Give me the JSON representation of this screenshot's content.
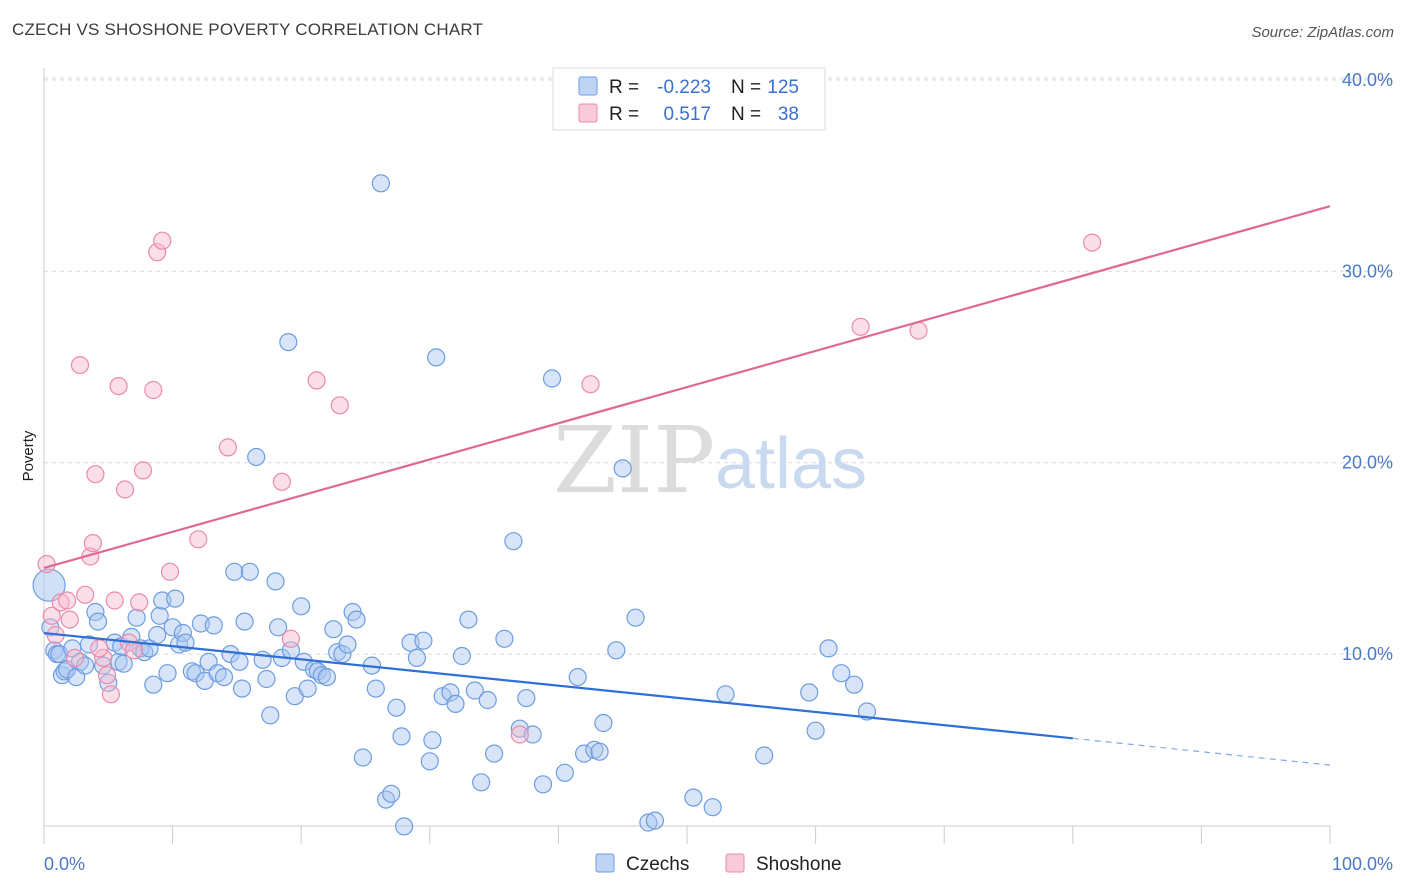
{
  "title": "CZECH VS SHOSHONE POVERTY CORRELATION CHART",
  "source": "Source: ZipAtlas.com",
  "watermark": {
    "part1": "ZIP",
    "part2": "atlas"
  },
  "legend_top": [
    {
      "r_label": "R =",
      "r_value": "-0.223",
      "n_label": "N =",
      "n_value": "125",
      "color": "#a9c6f0"
    },
    {
      "r_label": "R =",
      "r_value": "0.517",
      "n_label": "N =",
      "n_value": "38",
      "color": "#f7b8cc"
    }
  ],
  "legend_bottom": [
    {
      "label": "Czechs",
      "color": "#a9c6f0"
    },
    {
      "label": "Shoshone",
      "color": "#f7b8cc"
    }
  ],
  "chart_data": {
    "type": "scatter",
    "title": "CZECH VS SHOSHONE POVERTY CORRELATION CHART",
    "xlabel": "",
    "ylabel": "Poverty",
    "xlim": [
      0,
      100
    ],
    "ylim": [
      0,
      40
    ],
    "x_tick_labels": [
      "0.0%",
      "100.0%"
    ],
    "y_ticks": [
      10,
      20,
      30,
      40
    ],
    "y_tick_labels": [
      "10.0%",
      "20.0%",
      "30.0%",
      "40.0%"
    ],
    "grid": true,
    "legend_position": "top-center",
    "series": [
      {
        "name": "Czechs",
        "color": "#a9c6f0",
        "stroke": "#6d9de0",
        "trend": {
          "x": [
            0,
            80
          ],
          "y": [
            11.1,
            5.6
          ],
          "dashed_extension": {
            "x": [
              80,
              100
            ],
            "y": [
              5.6,
              4.2
            ]
          },
          "color": "#2f6fd6"
        },
        "points": [
          [
            0.4,
            13.6
          ],
          [
            0.5,
            11.4
          ],
          [
            0.8,
            10.2
          ],
          [
            1.0,
            10.0
          ],
          [
            1.2,
            10.0
          ],
          [
            1.4,
            8.9
          ],
          [
            1.6,
            9.1
          ],
          [
            1.8,
            9.2
          ],
          [
            2.2,
            10.3
          ],
          [
            2.5,
            8.8
          ],
          [
            2.8,
            9.6
          ],
          [
            3.2,
            9.4
          ],
          [
            3.5,
            10.5
          ],
          [
            4.0,
            12.2
          ],
          [
            4.2,
            11.7
          ],
          [
            4.6,
            9.4
          ],
          [
            5.0,
            8.5
          ],
          [
            5.5,
            10.6
          ],
          [
            5.8,
            9.6
          ],
          [
            6.0,
            10.4
          ],
          [
            6.2,
            9.5
          ],
          [
            6.8,
            10.9
          ],
          [
            7.2,
            11.9
          ],
          [
            7.5,
            10.3
          ],
          [
            7.8,
            10.1
          ],
          [
            8.2,
            10.3
          ],
          [
            8.5,
            8.4
          ],
          [
            8.8,
            11.0
          ],
          [
            9.0,
            12.0
          ],
          [
            9.2,
            12.8
          ],
          [
            9.6,
            9.0
          ],
          [
            10.0,
            11.4
          ],
          [
            10.2,
            12.9
          ],
          [
            10.5,
            10.5
          ],
          [
            10.8,
            11.1
          ],
          [
            11.0,
            10.6
          ],
          [
            11.5,
            9.1
          ],
          [
            11.8,
            9.0
          ],
          [
            12.2,
            11.6
          ],
          [
            12.5,
            8.6
          ],
          [
            12.8,
            9.6
          ],
          [
            13.2,
            11.5
          ],
          [
            13.5,
            9.0
          ],
          [
            14.0,
            8.8
          ],
          [
            14.5,
            10.0
          ],
          [
            14.8,
            14.3
          ],
          [
            15.2,
            9.6
          ],
          [
            15.4,
            8.2
          ],
          [
            15.6,
            11.7
          ],
          [
            16.0,
            14.3
          ],
          [
            16.5,
            20.3
          ],
          [
            17.0,
            9.7
          ],
          [
            17.3,
            8.7
          ],
          [
            17.6,
            6.8
          ],
          [
            18.0,
            13.8
          ],
          [
            18.2,
            11.4
          ],
          [
            18.5,
            9.8
          ],
          [
            19.0,
            26.3
          ],
          [
            19.2,
            10.2
          ],
          [
            19.5,
            7.8
          ],
          [
            20.0,
            12.5
          ],
          [
            20.2,
            9.6
          ],
          [
            20.5,
            8.2
          ],
          [
            21.0,
            9.2
          ],
          [
            21.3,
            9.1
          ],
          [
            21.6,
            8.9
          ],
          [
            22.0,
            8.8
          ],
          [
            22.5,
            11.3
          ],
          [
            22.8,
            10.1
          ],
          [
            23.2,
            10.0
          ],
          [
            23.6,
            10.5
          ],
          [
            24.0,
            12.2
          ],
          [
            24.3,
            11.8
          ],
          [
            24.8,
            4.6
          ],
          [
            25.5,
            9.4
          ],
          [
            25.8,
            8.2
          ],
          [
            26.2,
            34.6
          ],
          [
            26.6,
            2.4
          ],
          [
            27.0,
            2.7
          ],
          [
            27.4,
            7.2
          ],
          [
            27.8,
            5.7
          ],
          [
            28.0,
            1.0
          ],
          [
            28.5,
            10.6
          ],
          [
            29.0,
            9.8
          ],
          [
            29.5,
            10.7
          ],
          [
            30.0,
            4.4
          ],
          [
            30.2,
            5.5
          ],
          [
            30.5,
            25.5
          ],
          [
            31.0,
            7.8
          ],
          [
            31.6,
            8.0
          ],
          [
            32.0,
            7.4
          ],
          [
            32.5,
            9.9
          ],
          [
            33.0,
            11.8
          ],
          [
            33.5,
            8.1
          ],
          [
            34.0,
            3.3
          ],
          [
            34.5,
            7.6
          ],
          [
            35.0,
            4.8
          ],
          [
            35.8,
            10.8
          ],
          [
            36.5,
            15.9
          ],
          [
            37.0,
            6.1
          ],
          [
            37.5,
            7.7
          ],
          [
            38.0,
            5.8
          ],
          [
            38.8,
            3.2
          ],
          [
            39.5,
            24.4
          ],
          [
            40.5,
            3.8
          ],
          [
            41.5,
            8.8
          ],
          [
            42.0,
            4.8
          ],
          [
            42.8,
            5.0
          ],
          [
            43.2,
            4.9
          ],
          [
            43.5,
            6.4
          ],
          [
            44.5,
            10.2
          ],
          [
            45.0,
            19.7
          ],
          [
            46.0,
            11.9
          ],
          [
            47.0,
            1.2
          ],
          [
            47.5,
            1.3
          ],
          [
            50.5,
            2.5
          ],
          [
            52.0,
            2.0
          ],
          [
            53.0,
            7.9
          ],
          [
            59.5,
            8.0
          ],
          [
            56.0,
            4.7
          ],
          [
            60.0,
            6.0
          ],
          [
            61.0,
            10.3
          ],
          [
            62.0,
            9.0
          ],
          [
            63.0,
            8.4
          ],
          [
            64.0,
            7.0
          ]
        ]
      },
      {
        "name": "Shoshone",
        "color": "#f7b8cc",
        "stroke": "#ec8aa9",
        "trend": {
          "x": [
            0,
            100
          ],
          "y": [
            14.5,
            33.4
          ],
          "color": "#e0698f"
        },
        "points": [
          [
            0.2,
            14.7
          ],
          [
            0.6,
            12.0
          ],
          [
            0.9,
            11.0
          ],
          [
            1.3,
            12.7
          ],
          [
            1.8,
            12.8
          ],
          [
            2.0,
            11.8
          ],
          [
            2.4,
            9.8
          ],
          [
            2.8,
            25.1
          ],
          [
            3.2,
            13.1
          ],
          [
            3.6,
            15.1
          ],
          [
            3.8,
            15.8
          ],
          [
            4.0,
            19.4
          ],
          [
            4.6,
            9.8
          ],
          [
            4.9,
            8.9
          ],
          [
            5.2,
            7.9
          ],
          [
            5.5,
            12.8
          ],
          [
            5.8,
            24.0
          ],
          [
            6.3,
            18.6
          ],
          [
            6.6,
            10.6
          ],
          [
            7.0,
            10.2
          ],
          [
            7.4,
            12.7
          ],
          [
            7.7,
            19.6
          ],
          [
            8.5,
            23.8
          ],
          [
            8.8,
            31.0
          ],
          [
            9.2,
            31.6
          ],
          [
            9.8,
            14.3
          ],
          [
            12.0,
            16.0
          ],
          [
            14.3,
            20.8
          ],
          [
            18.5,
            19.0
          ],
          [
            19.2,
            10.8
          ],
          [
            21.2,
            24.3
          ],
          [
            23.0,
            23.0
          ],
          [
            37.0,
            5.8
          ],
          [
            42.5,
            24.1
          ],
          [
            63.5,
            27.1
          ],
          [
            68.0,
            26.9
          ],
          [
            81.5,
            31.5
          ],
          [
            4.3,
            10.3
          ]
        ]
      }
    ]
  }
}
